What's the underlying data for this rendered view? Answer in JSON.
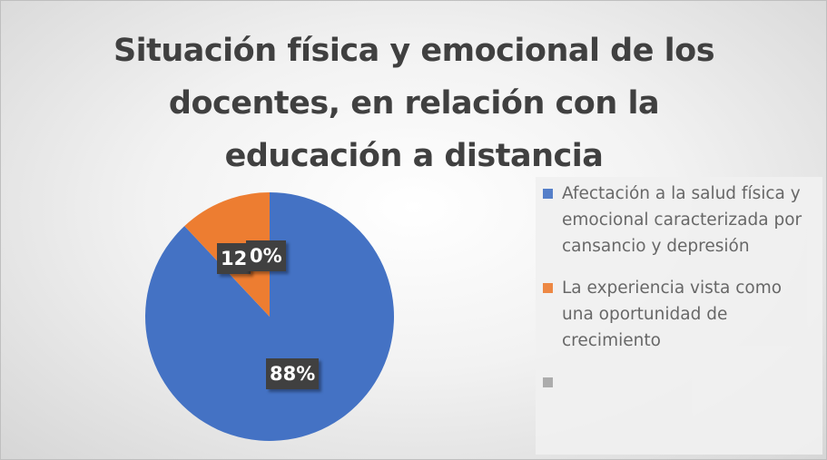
{
  "chart_data": {
    "type": "pie",
    "title": "Situación física y  emocional de los\ndocentes, en relación con la\neducación a distancia",
    "legend_position": "right",
    "slices": [
      {
        "name": "Afectación a la  salud física y emocional caracterizada por cansancio y depresión",
        "value": 88,
        "label": "88%",
        "color": "#4472C4"
      },
      {
        "name": "La experiencia vista como una oportunidad de crecimiento",
        "value": 12,
        "label": "12",
        "color": "#ED7D31"
      },
      {
        "name": "",
        "value": 0,
        "label": "0%",
        "color": "#A5A5A5"
      }
    ]
  }
}
